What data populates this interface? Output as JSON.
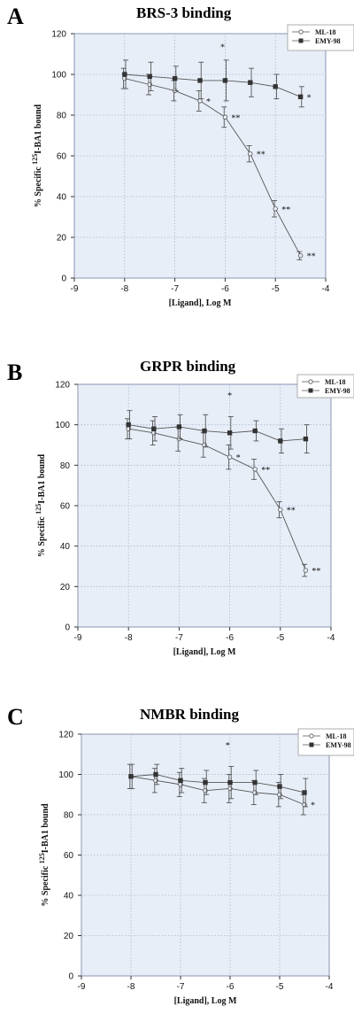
{
  "chart_data": [
    {
      "type": "line",
      "panel_label": "A",
      "title": "BRS-3 binding",
      "xlabel": "[Ligand], Log M",
      "ylabel_pre": "% Specific ",
      "ylabel_sup": "125",
      "ylabel_post": "I-BA1 bound",
      "xlim": [
        -9,
        -4
      ],
      "ylim": [
        0,
        120
      ],
      "xticks": [
        -9,
        -8,
        -7,
        -6,
        -5,
        -4
      ],
      "yticks": [
        0,
        20,
        40,
        60,
        80,
        100,
        120
      ],
      "grid": true,
      "legend_position": "top-right",
      "series": [
        {
          "name": "ML-18",
          "marker": "open-circle",
          "x": [
            -8,
            -7.5,
            -7,
            -6.5,
            -6,
            -5.5,
            -5,
            -4.5
          ],
          "y": [
            98,
            95,
            92,
            87,
            79,
            61,
            34,
            11
          ],
          "err": [
            5,
            5,
            5,
            5,
            5,
            4,
            4,
            2
          ],
          "annotations": [
            "",
            "",
            "",
            "*",
            "**",
            "**",
            "**",
            "**"
          ]
        },
        {
          "name": "EMY-98",
          "marker": "filled-square",
          "x": [
            -8,
            -7.5,
            -7,
            -6.5,
            -6,
            -5.5,
            -5,
            -4.5
          ],
          "y": [
            100,
            99,
            98,
            97,
            97,
            96,
            94,
            89
          ],
          "err": [
            7,
            7,
            6,
            9,
            10,
            7,
            6,
            5
          ],
          "annotations": [
            "",
            "",
            "",
            "",
            "",
            "",
            "",
            "*"
          ]
        }
      ],
      "extra_marks": [
        {
          "x": -6.05,
          "y": 112,
          "text": "*"
        }
      ]
    },
    {
      "type": "line",
      "panel_label": "B",
      "title": "GRPR binding",
      "xlabel": "[Ligand], Log M",
      "ylabel_pre": "% Specific ",
      "ylabel_sup": "125",
      "ylabel_post": "I-BA1 bound",
      "xlim": [
        -9,
        -4
      ],
      "ylim": [
        0,
        120
      ],
      "xticks": [
        -9,
        -8,
        -7,
        -6,
        -5,
        -4
      ],
      "yticks": [
        0,
        20,
        40,
        60,
        80,
        100,
        120
      ],
      "grid": true,
      "legend_position": "top-right",
      "series": [
        {
          "name": "ML-18",
          "marker": "open-circle",
          "x": [
            -8,
            -7.5,
            -7,
            -6.5,
            -6,
            -5.5,
            -5,
            -4.5
          ],
          "y": [
            98,
            96,
            93,
            90,
            84,
            78,
            58,
            28
          ],
          "err": [
            5,
            6,
            6,
            6,
            6,
            5,
            4,
            3
          ],
          "annotations": [
            "",
            "",
            "",
            "",
            "*",
            "**",
            "**",
            "**"
          ]
        },
        {
          "name": "EMY-98",
          "marker": "filled-square",
          "x": [
            -8,
            -7.5,
            -7,
            -6.5,
            -6,
            -5.5,
            -5,
            -4.5
          ],
          "y": [
            100,
            98,
            99,
            97,
            96,
            97,
            92,
            93
          ],
          "err": [
            7,
            6,
            6,
            8,
            8,
            5,
            6,
            7
          ],
          "annotations": [
            "",
            "",
            "",
            "",
            "",
            "",
            "",
            ""
          ]
        }
      ],
      "extra_marks": [
        {
          "x": -6.0,
          "y": 113,
          "text": "*"
        }
      ]
    },
    {
      "type": "line",
      "panel_label": "C",
      "title": "NMBR binding",
      "xlabel": "[Ligand], Log M",
      "ylabel_pre": "% Specific ",
      "ylabel_sup": "125",
      "ylabel_post": "I-BA1 bound",
      "xlim": [
        -9,
        -4
      ],
      "ylim": [
        0,
        120
      ],
      "xticks": [
        -9,
        -8,
        -7,
        -6,
        -5,
        -4
      ],
      "yticks": [
        0,
        20,
        40,
        60,
        80,
        100,
        120
      ],
      "grid": true,
      "legend_position": "top-right",
      "series": [
        {
          "name": "ML-18",
          "marker": "open-circle",
          "x": [
            -8,
            -7.5,
            -7,
            -6.5,
            -6,
            -5.5,
            -5,
            -4.5
          ],
          "y": [
            99,
            97,
            95,
            92,
            93,
            91,
            90,
            85
          ],
          "err": [
            6,
            6,
            6,
            6,
            7,
            6,
            6,
            5
          ],
          "annotations": [
            "",
            "",
            "",
            "",
            "",
            "",
            "",
            "*"
          ]
        },
        {
          "name": "EMY-98",
          "marker": "filled-square",
          "x": [
            -8,
            -7.5,
            -7,
            -6.5,
            -6,
            -5.5,
            -5,
            -4.5
          ],
          "y": [
            99,
            100,
            97,
            96,
            96,
            96,
            94,
            91
          ],
          "err": [
            6,
            5,
            6,
            6,
            8,
            6,
            6,
            7
          ],
          "annotations": [
            "",
            "",
            "",
            "",
            "",
            "",
            "",
            ""
          ]
        }
      ],
      "extra_marks": [
        {
          "x": -6.05,
          "y": 113,
          "text": "*"
        }
      ]
    }
  ],
  "colors": {
    "plot_background": "#e8eef8",
    "grid": "#aab6cc",
    "frame": "#8895b0",
    "series_line": "#555555"
  }
}
